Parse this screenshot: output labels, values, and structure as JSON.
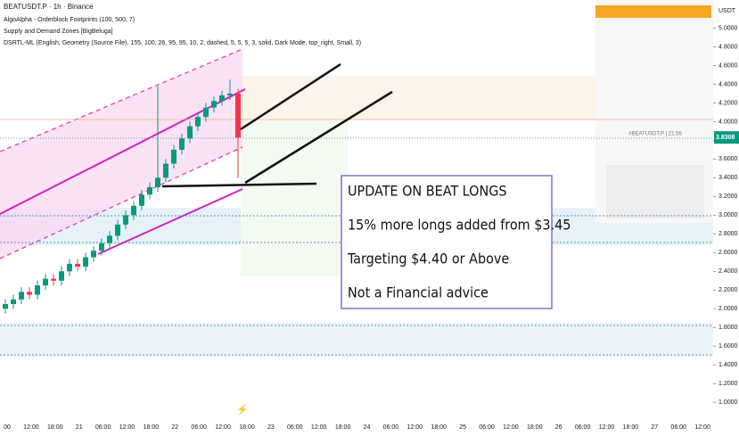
{
  "header": {
    "symbol": "BEATUSDT.P · 1h · Binance",
    "indicators": [
      "AlgoAlpha - Orderblock Footprints (100, 500, 7)",
      "Supply and Demand Zones [BigBeluga]",
      "DSRTL-ML (English, Geometry (Source File), 155, 100, 26, 95, 95, 10, 2, dashed, 5, 5, 5, 3, solid, Dark Mode, top_right, Small, 3)"
    ]
  },
  "chart_data": {
    "type": "candlestick",
    "up_color": "#089981",
    "down_color": "#f23645",
    "open": [
      2.0,
      2.05,
      2.1,
      2.18,
      2.15,
      2.25,
      2.32,
      2.3,
      2.4,
      2.48,
      2.45,
      2.55,
      2.62,
      2.7,
      2.78,
      2.9,
      3.0,
      3.1,
      3.22,
      3.3,
      3.4,
      3.55,
      3.7,
      3.82,
      3.95,
      4.05,
      4.15,
      4.22,
      4.28,
      4.3
    ],
    "high": [
      2.1,
      2.15,
      2.23,
      2.23,
      2.3,
      2.37,
      2.37,
      2.45,
      2.53,
      2.53,
      2.6,
      2.67,
      2.75,
      2.83,
      2.95,
      3.05,
      3.15,
      3.27,
      3.35,
      4.38,
      3.6,
      3.75,
      3.87,
      4.0,
      4.1,
      4.2,
      4.27,
      4.33,
      4.45,
      4.35
    ],
    "low": [
      1.95,
      2.0,
      2.05,
      2.1,
      2.1,
      2.2,
      2.25,
      2.25,
      2.35,
      2.4,
      2.4,
      2.5,
      2.57,
      2.65,
      2.73,
      2.85,
      2.95,
      3.05,
      3.17,
      3.25,
      3.35,
      3.5,
      3.65,
      3.77,
      3.9,
      4.0,
      4.1,
      4.17,
      4.23,
      3.4
    ],
    "close": [
      2.05,
      2.1,
      2.18,
      2.15,
      2.25,
      2.32,
      2.3,
      2.4,
      2.48,
      2.45,
      2.55,
      2.62,
      2.7,
      2.78,
      2.9,
      3.0,
      3.1,
      3.22,
      3.3,
      3.4,
      3.55,
      3.7,
      3.82,
      3.95,
      4.05,
      4.15,
      4.22,
      4.28,
      4.3,
      3.83
    ],
    "x_labels": [
      "00",
      "12:00",
      "18:00",
      "21",
      "06:00",
      "12:00",
      "18:00",
      "22",
      "06:00",
      "12:00",
      "18:00",
      "23",
      "06:00",
      "12:00",
      "18:00",
      "24",
      "06:00",
      "12:00",
      "18:00",
      "25",
      "06:00",
      "12:00",
      "18:00",
      "26",
      "06:00",
      "12:00",
      "18:00",
      "27",
      "06:00",
      "12:00"
    ],
    "ylim": [
      0.84,
      5.3
    ],
    "yticks": [
      {
        "value": 5,
        "label": "5.0000"
      },
      {
        "value": 4.8,
        "label": "4.8000"
      },
      {
        "value": 4.6,
        "label": "4.6000"
      },
      {
        "value": 4.4,
        "label": "4.4000"
      },
      {
        "value": 4.2,
        "label": "4.2000"
      },
      {
        "value": 4,
        "label": "4.0000"
      },
      {
        "value": 3.8,
        "label": "3.8000"
      },
      {
        "value": 3.6,
        "label": "3.6000"
      },
      {
        "value": 3.4,
        "label": "3.4000"
      },
      {
        "value": 3.2,
        "label": "3.2000"
      },
      {
        "value": 3,
        "label": "3.0000"
      },
      {
        "value": 2.8,
        "label": "2.8000"
      },
      {
        "value": 2.6,
        "label": "2.6000"
      },
      {
        "value": 2.4,
        "label": "2.4000"
      },
      {
        "value": 2.2,
        "label": "2.2000"
      },
      {
        "value": 2,
        "label": "2.0000"
      },
      {
        "value": 1.8,
        "label": "1.8000"
      },
      {
        "value": 1.6,
        "label": "1.6000"
      },
      {
        "value": 1.4,
        "label": "1.4000"
      },
      {
        "value": 1.2,
        "label": "1.2000"
      },
      {
        "value": 1,
        "label": "1.0000"
      }
    ],
    "currency": "USDT",
    "last_price": 3.8308,
    "watermark": "#BEATUSDT.P | 21:56"
  },
  "annotation": {
    "lines": [
      "UPDATE ON BEAT LONGS",
      "15% more longs added from $3.45",
      "Targeting $4.40 or Above",
      "Not a Financial advice"
    ]
  }
}
